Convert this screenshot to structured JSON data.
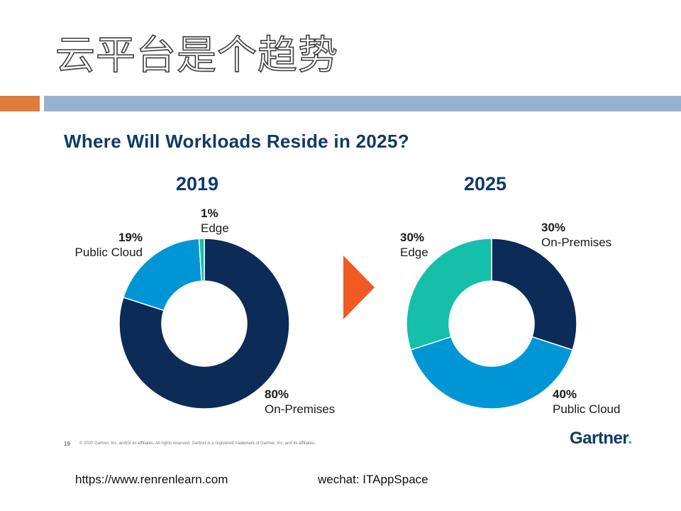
{
  "slide": {
    "title": "云平台是个趋势",
    "accent_orange": "#e07b3c",
    "accent_blue": "#95b3d0"
  },
  "content": {
    "title": "Where Will Workloads Reside in 2025?",
    "footnote_page": "19",
    "footnote": "© 2020 Gartner, Inc. and/or its affiliates. All rights reserved. Gartner is a registered trademark of Gartner, Inc. and its affiliates.",
    "logo": "Gartner",
    "logo_dot": "."
  },
  "footer": {
    "left": "https://www.renrenlearn.com",
    "right": "wechat: ITAppSpace"
  },
  "arrow_color": "#f15a22",
  "chart_data": [
    {
      "type": "pie",
      "title": "2019",
      "donut": true,
      "slices": [
        {
          "name": "On-Premises",
          "value": 80,
          "label": "80%",
          "color": "#0c2b57"
        },
        {
          "name": "Public Cloud",
          "value": 19,
          "label": "19%",
          "color": "#0096d6"
        },
        {
          "name": "Edge",
          "value": 1,
          "label": "1%",
          "color": "#16bfaa"
        }
      ]
    },
    {
      "type": "pie",
      "title": "2025",
      "donut": true,
      "slices": [
        {
          "name": "On-Premises",
          "value": 30,
          "label": "30%",
          "color": "#0c2b57"
        },
        {
          "name": "Public Cloud",
          "value": 40,
          "label": "40%",
          "color": "#0096d6"
        },
        {
          "name": "Edge",
          "value": 30,
          "label": "30%",
          "color": "#16bfaa"
        }
      ]
    }
  ]
}
